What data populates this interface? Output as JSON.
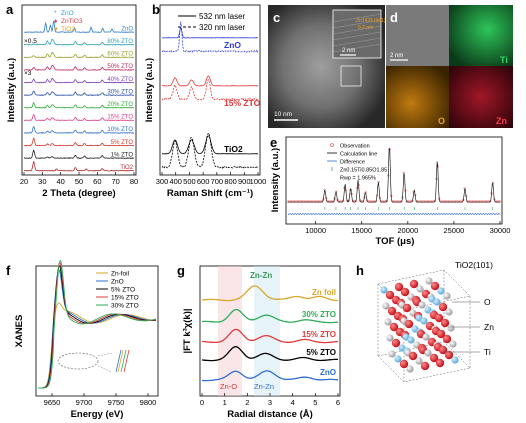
{
  "panels": {
    "a": {
      "letter": "a",
      "legend": [
        {
          "name": "ZnO",
          "color": "#2f9fd8",
          "marker": "*"
        },
        {
          "name": "ZnTiO3",
          "color": "#d6404a",
          "marker": "♦"
        },
        {
          "name": "TiO2",
          "color": "#d9a72a",
          "marker": "♥"
        }
      ],
      "scale_labels": [
        "×0.5",
        "×3"
      ],
      "traces": [
        {
          "label": "ZnO",
          "color": "#2e7fd0"
        },
        {
          "label": "80% ZTO",
          "color": "#2aa0b4"
        },
        {
          "label": "60% ZTO",
          "color": "#9aa12a"
        },
        {
          "label": "50% ZTO",
          "color": "#c02a5a"
        },
        {
          "label": "40% ZTO",
          "color": "#7f3fb8"
        },
        {
          "label": "30% ZTO",
          "color": "#2a4fa8"
        },
        {
          "label": "20% ZTO",
          "color": "#2fae3a"
        },
        {
          "label": "15% ZTO",
          "color": "#e0408a"
        },
        {
          "label": "10% ZTO",
          "color": "#3070c8"
        },
        {
          "label": "5% ZTO",
          "color": "#d03a2a"
        },
        {
          "label": "1% ZTO",
          "color": "#222222"
        },
        {
          "label": "TiO2",
          "color": "#b03030"
        }
      ],
      "xlabel": "2 Theta (degree)",
      "ylabel": "Intensity (a.u.)",
      "xticks": [
        "20",
        "30",
        "40",
        "50",
        "60",
        "70",
        "80"
      ]
    },
    "b": {
      "letter": "b",
      "legend": [
        {
          "name": "532 nm laser",
          "style": "solid"
        },
        {
          "name": "320 nm laser",
          "style": "dashed"
        }
      ],
      "traces": [
        {
          "label": "ZnO",
          "color": "#2f3fd8"
        },
        {
          "label": "15% ZTO",
          "color": "#e03a3a"
        },
        {
          "label": "TiO2",
          "color": "#000000"
        }
      ],
      "xlabel": "Raman Shift (cm⁻¹)",
      "ylabel": "Intensity (a.u.)",
      "xticks": [
        "300",
        "400",
        "500",
        "600",
        "700",
        "800",
        "900",
        "1000"
      ]
    },
    "c": {
      "letter": "c",
      "scalebar_main": "10 nm",
      "scalebar_inset": "2 nm",
      "inset_text": [
        "ZnTiO3 (101)",
        "0.2 nm"
      ]
    },
    "d": {
      "letter": "d",
      "scalebar": "2 nm",
      "maps": [
        {
          "element": "Ti",
          "color": "#1fb14a"
        },
        {
          "element": "O",
          "color": "#e0901a"
        },
        {
          "element": "Zn",
          "color": "#e0203a"
        }
      ]
    },
    "e": {
      "letter": "e",
      "legend": [
        "Observation",
        "Calculation line",
        "Difference",
        "Zn0.15Ti0.85O1.85",
        "Rwp = 1.965%"
      ],
      "xlabel": "TOF (μs)",
      "ylabel": "Intensity (a.u.)",
      "xticks": [
        "10000",
        "15000",
        "20000",
        "25000",
        "30000"
      ]
    },
    "f": {
      "letter": "f",
      "legend": [
        {
          "name": "Zn-foil",
          "color": "#d9a72a"
        },
        {
          "name": "ZnO",
          "color": "#2f6fd0"
        },
        {
          "name": "5% ZTO",
          "color": "#000000"
        },
        {
          "name": "15% ZTO",
          "color": "#e03a3a"
        },
        {
          "name": "30% ZTO",
          "color": "#2fae5a"
        }
      ],
      "xlabel": "Energy (eV)",
      "ylabel": "XANES",
      "xticks": [
        "9650",
        "9700",
        "9750",
        "9800"
      ]
    },
    "g": {
      "letter": "g",
      "top_label": "Zn-Zn",
      "traces": [
        {
          "label": "Zn foil",
          "color": "#d9a72a"
        },
        {
          "label": "30% ZTO",
          "color": "#2fae5a"
        },
        {
          "label": "15% ZTO",
          "color": "#e03a3a"
        },
        {
          "label": "5% ZTO",
          "color": "#000000"
        },
        {
          "label": "ZnO",
          "color": "#2f6fd0"
        }
      ],
      "bottom_labels": [
        "Zn-O",
        "Zn-Zn"
      ],
      "xlabel": "Radial distance (Å)",
      "ylabel": "|FT k³χ(k)|",
      "xticks": [
        "0",
        "1",
        "2",
        "3",
        "4",
        "5",
        "6"
      ]
    },
    "h": {
      "letter": "h",
      "labels": [
        "TiO2(101)",
        "O",
        "Zn",
        "Ti"
      ]
    }
  }
}
